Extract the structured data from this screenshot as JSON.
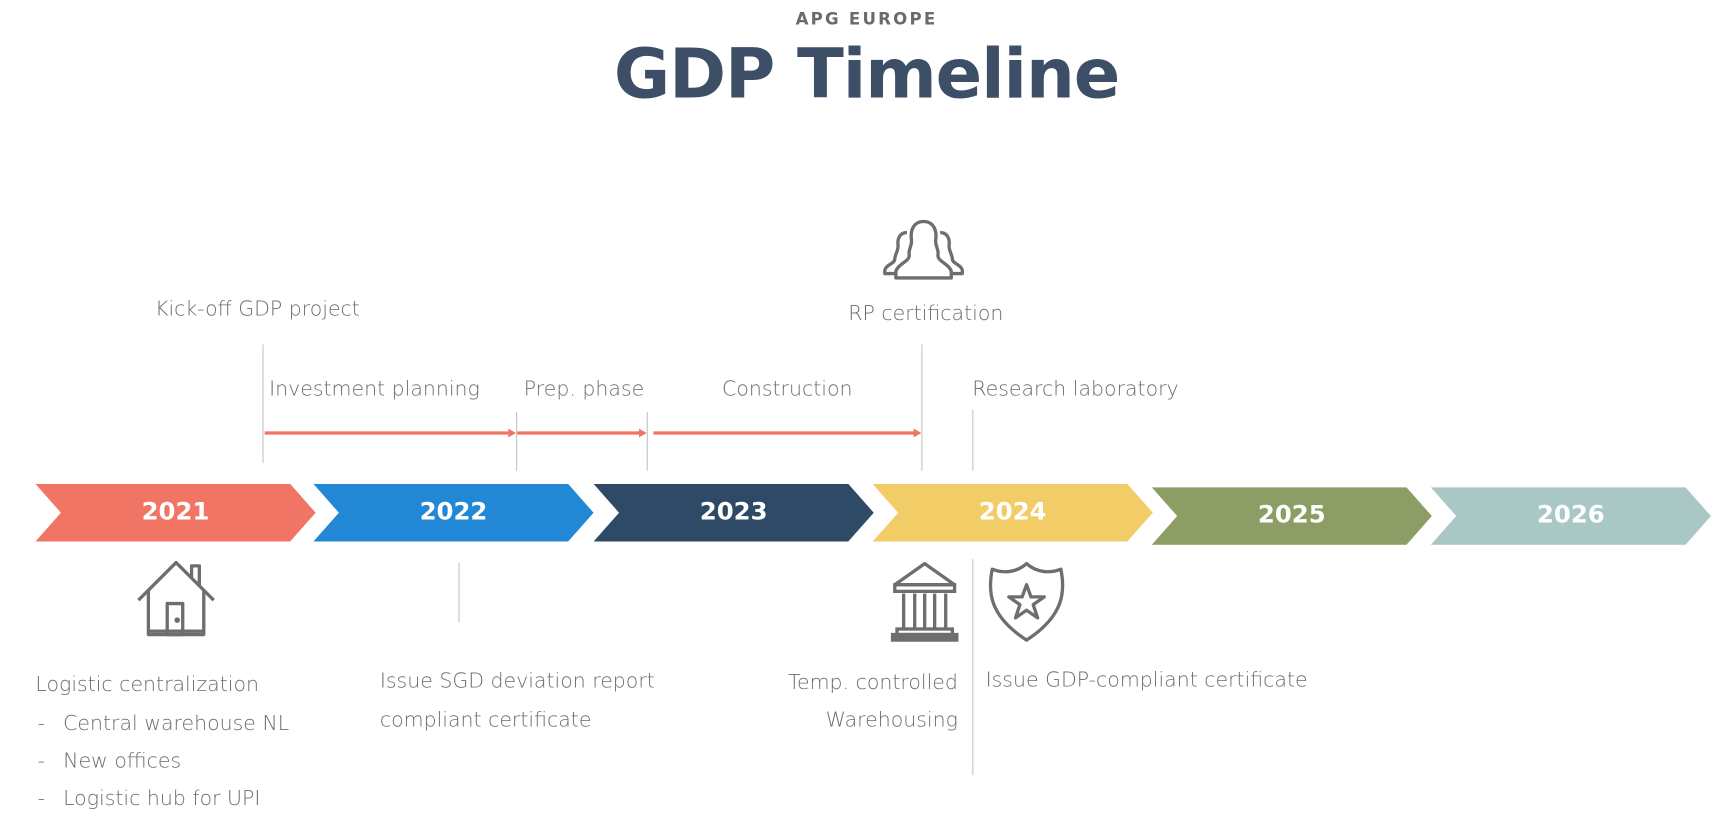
{
  "header": {
    "subtitle": "APG EUROPE",
    "title": "GDP Timeline"
  },
  "colors": {
    "title": "#3D4F66",
    "text": "#6B6B6B",
    "arrow": "#F07565",
    "icon": "#6E6E6E"
  },
  "years": [
    {
      "label": "2021",
      "color": "#F07565"
    },
    {
      "label": "2022",
      "color": "#2288D5"
    },
    {
      "label": "2023",
      "color": "#2E4A66"
    },
    {
      "label": "2024",
      "color": "#F2CC66"
    },
    {
      "label": "2025",
      "color": "#8C9E65"
    },
    {
      "label": "2026",
      "color": "#A9C7C4"
    }
  ],
  "above": {
    "kickoff": "Kick-off GDP project",
    "rp": "RP certification",
    "phases": [
      "Investment planning",
      "Prep. phase",
      "Construction"
    ],
    "research": "Research laboratory"
  },
  "below": {
    "logistic_title": "Logistic centralization",
    "logistic_items": [
      "Central warehouse NL",
      "New offices",
      "Logistic hub for UPI"
    ],
    "sgd": [
      "Issue SGD deviation report",
      "compliant certificate"
    ],
    "temp": [
      "Temp. controlled",
      "Warehousing"
    ],
    "gdp": "Issue GDP-compliant certificate"
  },
  "icons": {
    "people": "people-icon",
    "house": "house-icon",
    "bank": "bank-icon",
    "shield": "shield-star-icon"
  }
}
